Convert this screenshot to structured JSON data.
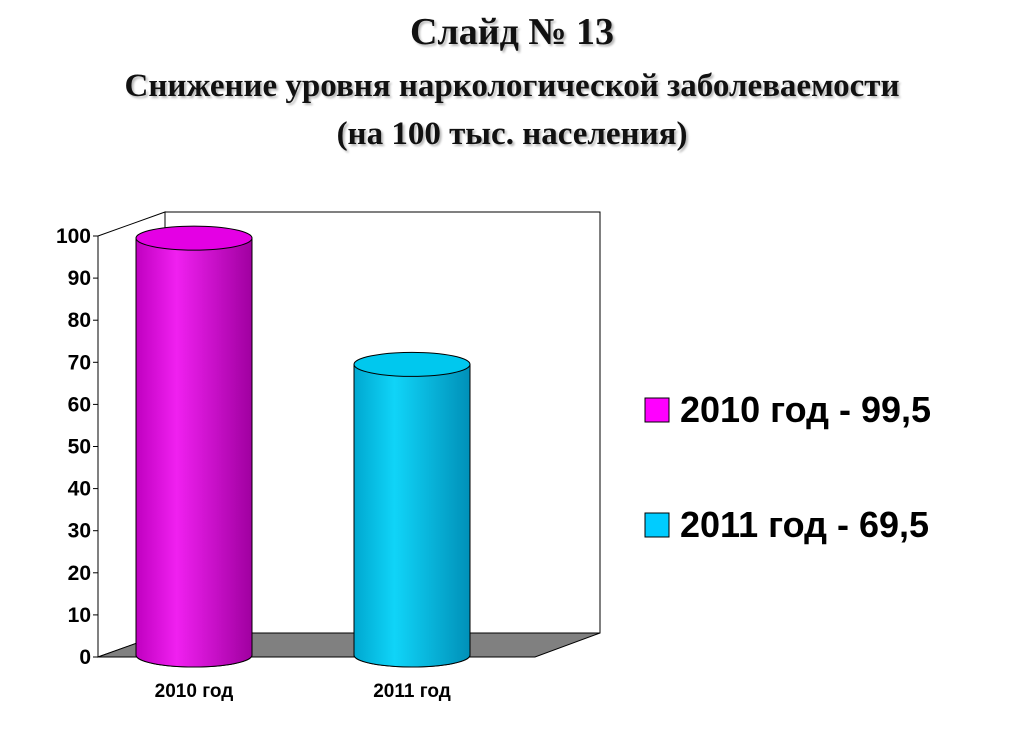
{
  "slide": {
    "title": "Слайд № 13",
    "subtitle_line1": "Снижение уровня наркологической заболеваемости",
    "subtitle_line2": "(на 100 тыс. населения)"
  },
  "chart_data": {
    "type": "bar",
    "style": "3d-cylinder",
    "title": "Снижение уровня наркологической заболеваемости (на 100 тыс. населения)",
    "categories": [
      "2010 год",
      "2011 год"
    ],
    "values": [
      99.5,
      69.5
    ],
    "colors": [
      "#e400e4",
      "#00c8ee"
    ],
    "ylim": [
      0,
      100
    ],
    "yticks": [
      0,
      10,
      20,
      30,
      40,
      50,
      60,
      70,
      80,
      90,
      100
    ],
    "legend": {
      "placement": "right",
      "entries": [
        {
          "label": "2010 год - 99,5",
          "color": "#ff00ff"
        },
        {
          "label": "2011 год - 69,5",
          "color": "#00ccff"
        }
      ]
    },
    "floor_color": "#808080"
  }
}
